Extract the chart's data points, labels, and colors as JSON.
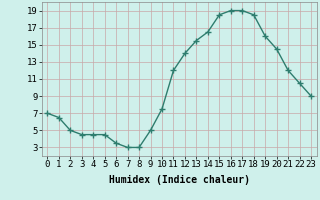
{
  "x": [
    0,
    1,
    2,
    3,
    4,
    5,
    6,
    7,
    8,
    9,
    10,
    11,
    12,
    13,
    14,
    15,
    16,
    17,
    18,
    19,
    20,
    21,
    22,
    23
  ],
  "y": [
    7,
    6.5,
    5,
    4.5,
    4.5,
    4.5,
    3.5,
    3,
    3,
    5,
    7.5,
    12,
    14,
    15.5,
    16.5,
    18.5,
    19,
    19,
    18.5,
    16,
    14.5,
    12,
    10.5,
    9
  ],
  "line_color": "#2e7d6e",
  "marker": "+",
  "marker_size": 4,
  "linewidth": 1.0,
  "markeredgewidth": 1.0,
  "background_color": "#cff0eb",
  "grid_color": "#c8a8a8",
  "xlabel": "Humidex (Indice chaleur)",
  "ylim": [
    2,
    20
  ],
  "xlim": [
    -0.5,
    23.5
  ],
  "yticks": [
    3,
    5,
    7,
    9,
    11,
    13,
    15,
    17,
    19
  ],
  "xticks": [
    0,
    1,
    2,
    3,
    4,
    5,
    6,
    7,
    8,
    9,
    10,
    11,
    12,
    13,
    14,
    15,
    16,
    17,
    18,
    19,
    20,
    21,
    22,
    23
  ],
  "xtick_labels": [
    "0",
    "1",
    "2",
    "3",
    "4",
    "5",
    "6",
    "7",
    "8",
    "9",
    "10",
    "11",
    "12",
    "13",
    "14",
    "15",
    "16",
    "17",
    "18",
    "19",
    "20",
    "21",
    "22",
    "23"
  ],
  "xlabel_fontsize": 7,
  "tick_fontsize": 6.5
}
